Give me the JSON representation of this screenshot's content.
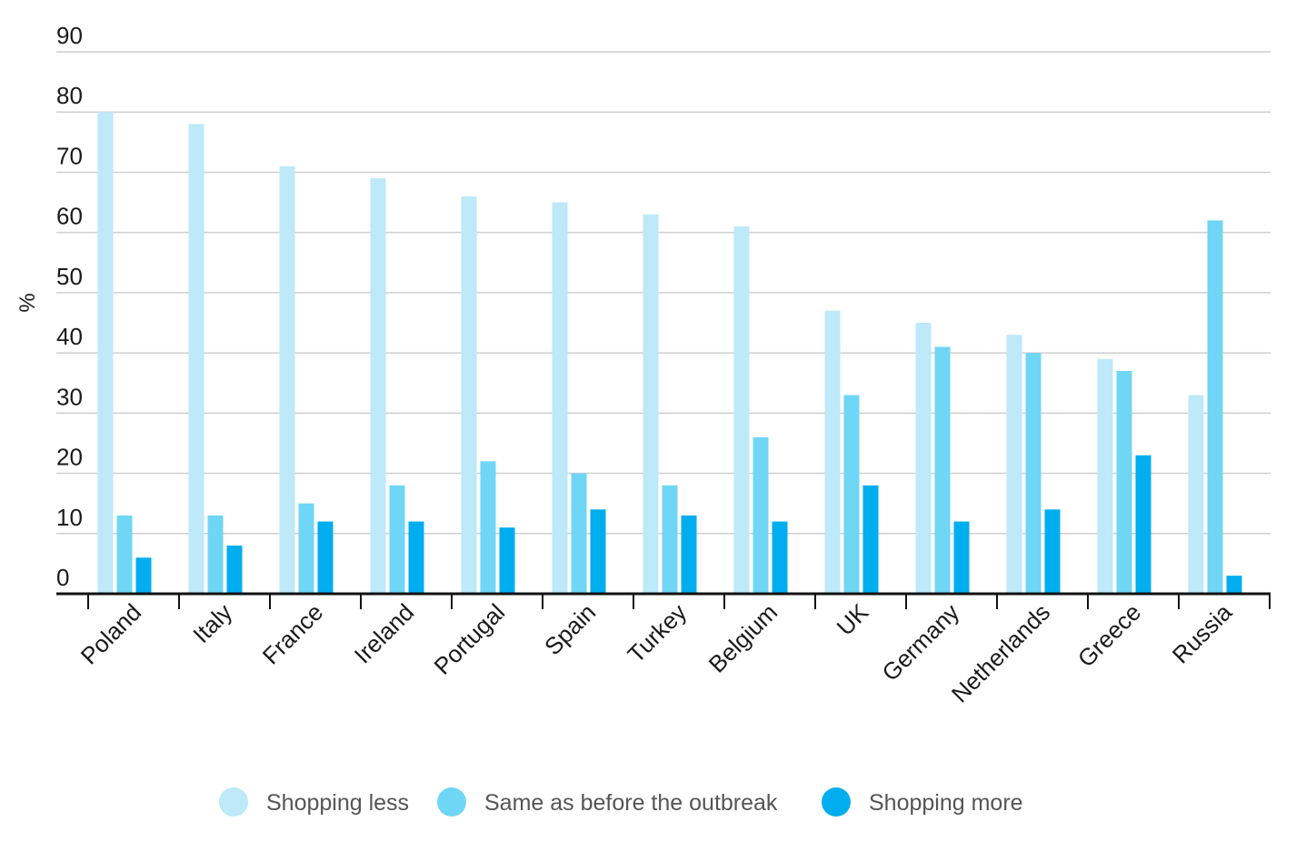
{
  "chart_data": {
    "type": "bar",
    "title": "",
    "xlabel": "",
    "ylabel": "%",
    "ylim": [
      0,
      90
    ],
    "yticks": [
      0,
      10,
      20,
      30,
      40,
      50,
      60,
      70,
      80,
      90
    ],
    "grid": true,
    "legend_position": "bottom",
    "categories": [
      "Poland",
      "Italy",
      "France",
      "Ireland",
      "Portugal",
      "Spain",
      "Turkey",
      "Belgium",
      "UK",
      "Germany",
      "Netherlands",
      "Greece",
      "Russia"
    ],
    "series": [
      {
        "name": "Shopping less",
        "color": "#bde9f8",
        "values": [
          80,
          78,
          71,
          69,
          66,
          65,
          63,
          61,
          47,
          45,
          43,
          39,
          33
        ]
      },
      {
        "name": "Same as before the outbreak",
        "color": "#6fd6f5",
        "values": [
          13,
          13,
          15,
          18,
          22,
          20,
          18,
          26,
          33,
          41,
          40,
          37,
          62
        ]
      },
      {
        "name": "Shopping more",
        "color": "#00aeef",
        "values": [
          6,
          8,
          12,
          12,
          11,
          14,
          13,
          12,
          18,
          12,
          14,
          23,
          3
        ]
      }
    ]
  }
}
